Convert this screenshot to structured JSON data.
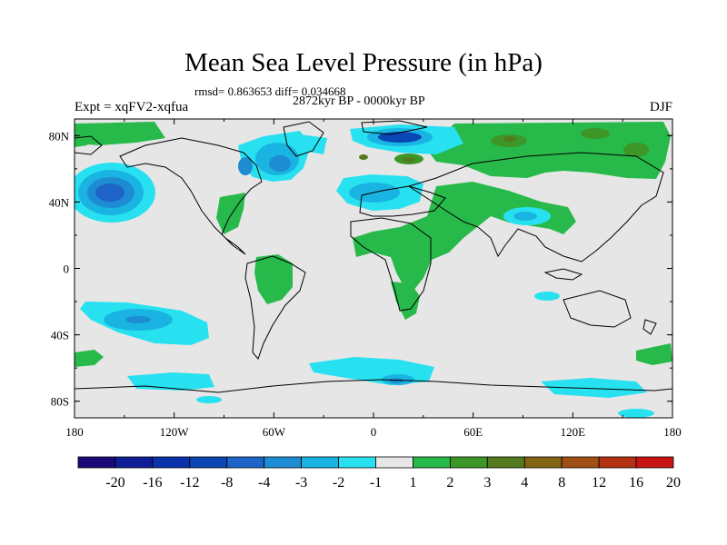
{
  "title": "Mean Sea Level Pressure (in hPa)",
  "stats": "rmsd= 0.863653 diff= 0.034668",
  "period": "2872kyr BP - 0000kyr BP",
  "experiment": "Expt = xqFV2-xqfua",
  "season": "DJF",
  "map": {
    "projection": "cylindrical-equidistant",
    "lon_range": [
      -180,
      180
    ],
    "lat_range": [
      -90,
      90
    ],
    "lat_ticks": [
      {
        "value": 80,
        "label": "80N"
      },
      {
        "value": 40,
        "label": "40N"
      },
      {
        "value": 0,
        "label": "0"
      },
      {
        "value": -40,
        "label": "40S"
      },
      {
        "value": -80,
        "label": "80S"
      }
    ],
    "lon_ticks": [
      {
        "value": -180,
        "label": "180"
      },
      {
        "value": -120,
        "label": "120W"
      },
      {
        "value": -60,
        "label": "60W"
      },
      {
        "value": 0,
        "label": "0"
      },
      {
        "value": 60,
        "label": "60E"
      },
      {
        "value": 120,
        "label": "120E"
      },
      {
        "value": 180,
        "label": "180"
      }
    ]
  },
  "colorbar": {
    "colors": [
      "#1a0a78",
      "#0f1e96",
      "#0a32aa",
      "#0a46b4",
      "#1e64c8",
      "#1e8cd2",
      "#19b4e1",
      "#28e1f0",
      "#e6e6e6",
      "#28b94b",
      "#3c9628",
      "#557a1e",
      "#826414",
      "#a05014",
      "#b43214",
      "#c81414"
    ],
    "labels": [
      "-20",
      "-16",
      "-12",
      "-8",
      "-4",
      "-3",
      "-2",
      "-1",
      "1",
      "2",
      "3",
      "4",
      "8",
      "12",
      "16",
      "20"
    ]
  }
}
